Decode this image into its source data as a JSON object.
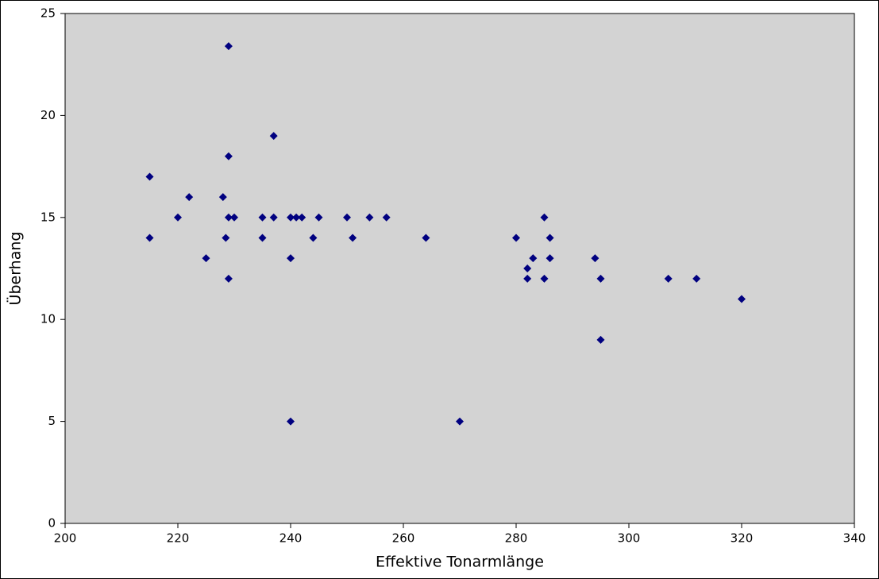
{
  "chart_data": {
    "type": "scatter",
    "xlabel": "Effektive Tonarmlänge",
    "ylabel": "Überhang",
    "xlim": [
      200,
      340
    ],
    "xticks": [
      200,
      220,
      240,
      260,
      280,
      300,
      320,
      340
    ],
    "ylim": [
      0,
      25
    ],
    "yticks": [
      0,
      5,
      10,
      15,
      20,
      25
    ],
    "color": "#000080",
    "background": "#d3d3d3",
    "x": [
      215,
      215,
      220,
      222,
      225,
      228,
      228.5,
      229,
      229,
      229,
      229,
      230,
      235,
      235,
      237,
      237,
      240,
      240,
      240,
      241,
      242,
      244,
      245,
      250,
      251,
      254,
      257,
      264,
      270,
      280,
      282,
      282,
      283,
      285,
      285,
      286,
      286,
      294,
      295,
      295,
      307,
      312,
      320
    ],
    "values": [
      17,
      14,
      15,
      16,
      13,
      16,
      14,
      23.4,
      18,
      15,
      12,
      15,
      15,
      14,
      19,
      15,
      15,
      13,
      5,
      15,
      15,
      14,
      15,
      15,
      14,
      15,
      15,
      14,
      5,
      14,
      12.5,
      12,
      13,
      15,
      12,
      14,
      13,
      13,
      12,
      9,
      12,
      12,
      11
    ]
  }
}
